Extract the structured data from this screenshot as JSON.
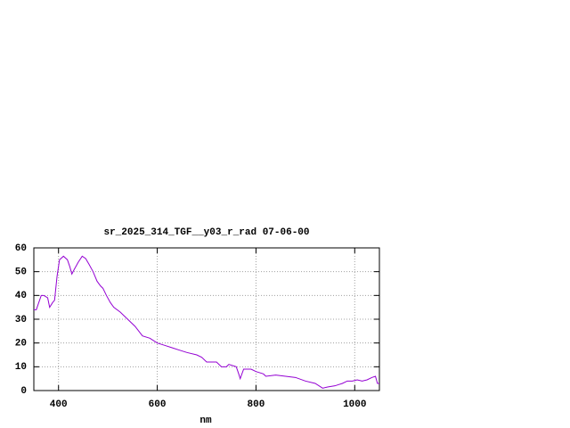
{
  "chart_data": {
    "type": "line",
    "title": "sr_2025_314_TGF__y03_r_rad 07-06-00",
    "x_label": "nm",
    "xlim": [
      350,
      1050
    ],
    "xticks": [
      400,
      600,
      800,
      1000
    ],
    "ylim": [
      0,
      60
    ],
    "yticks": [
      0,
      10,
      20,
      30,
      40,
      50,
      60
    ],
    "grid": true,
    "series": [
      {
        "color": "#9400d3",
        "x": [
          350,
          355,
          360,
          365,
          370,
          378,
          382,
          388,
          392,
          397,
          402,
          410,
          418,
          423,
          427,
          432,
          440,
          448,
          455,
          462,
          470,
          478,
          485,
          490,
          497,
          505,
          512,
          525,
          540,
          555,
          570,
          585,
          600,
          615,
          630,
          645,
          660,
          680,
          690,
          700,
          720,
          730,
          740,
          745,
          760,
          765,
          768,
          775,
          790,
          800,
          815,
          820,
          840,
          860,
          880,
          900,
          920,
          935,
          945,
          960,
          975,
          985,
          995,
          1005,
          1015,
          1025,
          1035,
          1042,
          1046,
          1050
        ],
        "values": [
          34,
          34,
          37,
          40,
          40,
          39,
          35,
          37,
          38,
          48,
          55,
          56.5,
          55,
          52,
          49,
          51,
          54,
          56.5,
          55.5,
          53,
          50,
          46,
          44,
          43,
          40,
          37,
          35,
          33,
          30,
          27,
          23,
          22,
          20,
          19,
          18,
          17,
          16,
          15,
          14,
          12,
          12,
          10,
          10,
          11,
          10,
          7,
          5,
          9,
          9,
          8,
          7,
          6,
          6.5,
          6,
          5.5,
          4,
          3,
          1,
          1.5,
          2,
          3,
          4,
          4,
          4.5,
          4,
          4.5,
          5.5,
          6,
          3,
          3
        ]
      }
    ]
  }
}
